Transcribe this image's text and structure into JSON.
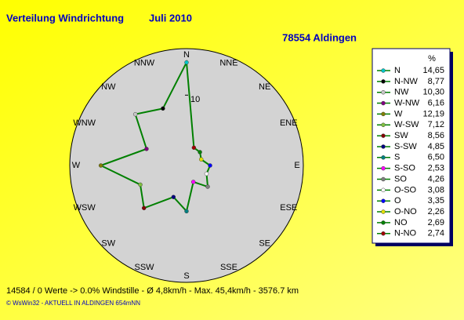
{
  "chart_data": {
    "type": "radar",
    "title": "Verteilung Windrichtung",
    "title_period": "Juli 2010",
    "subtitle": "78554 Aldingen",
    "directions": [
      "N",
      "NNE",
      "NE",
      "ENE",
      "E",
      "ESE",
      "SE",
      "SSE",
      "S",
      "SSW",
      "SW",
      "WSW",
      "W",
      "WNW",
      "NW",
      "NNW"
    ],
    "legend_header": "%",
    "categories": [
      "N",
      "N-NW",
      "NW",
      "W-NW",
      "W",
      "W-SW",
      "SW",
      "S-SW",
      "S",
      "S-SO",
      "SO",
      "O-SO",
      "O",
      "O-NO",
      "NO",
      "N-NO"
    ],
    "values": [
      14.65,
      8.77,
      10.3,
      6.16,
      12.19,
      7.12,
      8.56,
      4.85,
      6.5,
      2.53,
      4.26,
      3.08,
      3.35,
      2.26,
      2.69,
      2.74
    ],
    "value_labels": [
      "14,65",
      "8,77",
      "10,30",
      "6,16",
      "12,19",
      "7,12",
      "8,56",
      "4,85",
      "6,50",
      "2,53",
      "4,26",
      "3,08",
      "3,35",
      "2,26",
      "2,69",
      "2,74"
    ],
    "colors": [
      "#00c8c8",
      "#000000",
      "#c8c8c8",
      "#800080",
      "#808000",
      "#80c040",
      "#800000",
      "#000080",
      "#008080",
      "#ff00ff",
      "#808080",
      "#ffffff",
      "#0000ff",
      "#e0e000",
      "#008000",
      "#a00000"
    ],
    "line_color": "#008000",
    "rlim": [
      0,
      16.5
    ],
    "rticks": [
      10
    ],
    "footer": "14584 / 0 Werte  -> 0.0% Windstille  -  Ø 4,8km/h  -  Max. 45,4km/h  -  3576.7 km",
    "credit": "© WsWin32  -  AKTUELL IN ALDINGEN 654mNN"
  }
}
